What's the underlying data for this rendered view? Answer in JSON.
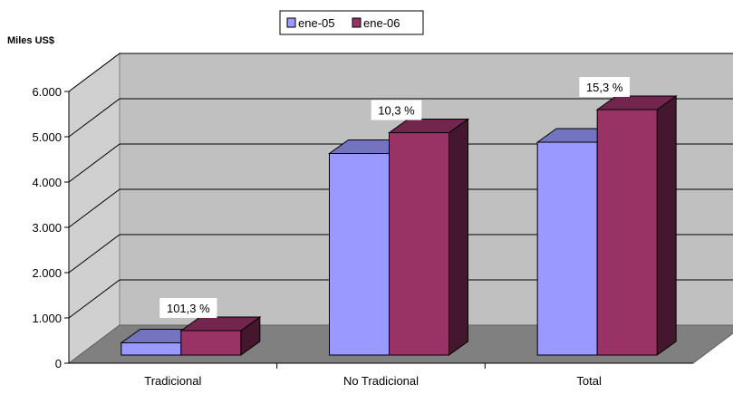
{
  "chart_data": {
    "type": "bar",
    "title": "",
    "ylabel": "Miles US$",
    "xlabel": "",
    "ylim": [
      0,
      6000
    ],
    "yticks": [
      0,
      1000,
      2000,
      3000,
      4000,
      5000,
      6000
    ],
    "ytick_labels": [
      "0",
      "1.000",
      "2.000",
      "3.000",
      "4.000",
      "5.000",
      "6.000"
    ],
    "grid": true,
    "legend_position": "top-center",
    "categories": [
      "Tradicional",
      "No Tradicional",
      "Total"
    ],
    "series": [
      {
        "name": "ene-05",
        "values": [
          270,
          4450,
          4700
        ],
        "color": "#9999ff"
      },
      {
        "name": "ene-06",
        "values": [
          540,
          4910,
          5420
        ],
        "color": "#993366"
      }
    ],
    "annotations": [
      "101,3 %",
      "10,3 %",
      "15,3 %"
    ]
  }
}
